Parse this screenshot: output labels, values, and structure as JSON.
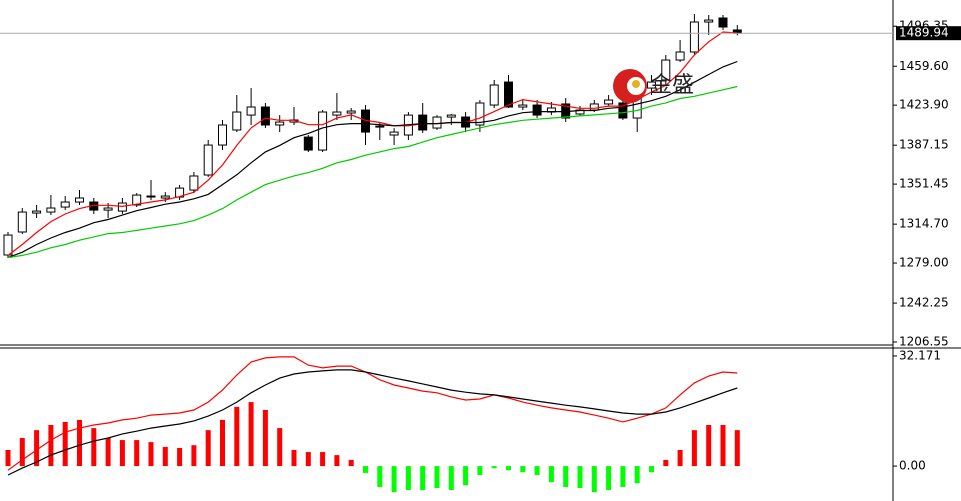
{
  "chart_data": [
    {
      "type": "candlestick",
      "up_color": "#ffffff",
      "down_color": "#000000",
      "open": [
        1286.4,
        1307.5,
        1324.9,
        1325.8,
        1330.4,
        1335.0,
        1335.0,
        1327.6,
        1326.7,
        1332.3,
        1339.6,
        1338.7,
        1339.6,
        1346.0,
        1359.8,
        1387.3,
        1401.1,
        1414.8,
        1422.2,
        1405.7,
        1408.4,
        1394.6,
        1382.7,
        1414.8,
        1416.7,
        1419.4,
        1403.8,
        1396.5,
        1396.5,
        1414.8,
        1402.9,
        1413.0,
        1413.0,
        1405.7,
        1424.0,
        1445.1,
        1422.2,
        1424.0,
        1417.6,
        1425.0,
        1415.8,
        1419.4,
        1425.0,
        1425.9,
        1412.1,
        1439.6,
        1447.0,
        1465.3,
        1472.7,
        1500.2,
        1503.9,
        1492.9
      ],
      "high": [
        1307.5,
        1329.5,
        1332.3,
        1341.4,
        1340.5,
        1346.0,
        1338.7,
        1334.1,
        1338.7,
        1343.2,
        1355.2,
        1344.1,
        1350.6,
        1362.5,
        1391.9,
        1410.3,
        1433.2,
        1439.6,
        1425.9,
        1414.8,
        1422.2,
        1396.5,
        1419.4,
        1435.0,
        1421.3,
        1424.0,
        1408.4,
        1402.9,
        1417.6,
        1425.9,
        1414.8,
        1415.8,
        1417.6,
        1428.6,
        1447.0,
        1451.6,
        1428.6,
        1428.6,
        1426.8,
        1430.4,
        1423.1,
        1428.6,
        1433.2,
        1430.4,
        1448.8,
        1451.6,
        1469.9,
        1483.7,
        1507.5,
        1506.6,
        1506.6,
        1497.4
      ],
      "low": [
        1283.6,
        1305.6,
        1320.3,
        1323.1,
        1327.6,
        1332.3,
        1324.0,
        1320.3,
        1324.0,
        1330.4,
        1336.8,
        1335.0,
        1336.8,
        1343.2,
        1358.0,
        1382.7,
        1399.2,
        1405.7,
        1402.9,
        1399.2,
        1405.7,
        1380.9,
        1380.9,
        1410.3,
        1410.3,
        1387.3,
        1391.9,
        1387.3,
        1391.9,
        1398.3,
        1401.1,
        1405.7,
        1399.2,
        1399.2,
        1421.3,
        1421.3,
        1419.4,
        1412.1,
        1414.8,
        1408.4,
        1413.9,
        1417.6,
        1423.1,
        1410.3,
        1399.2,
        1433.2,
        1442.4,
        1463.5,
        1469.9,
        1488.3,
        1492.9,
        1488.0
      ],
      "close": [
        1304.7,
        1325.8,
        1326.7,
        1329.5,
        1335.0,
        1338.7,
        1327.6,
        1329.5,
        1334.1,
        1341.4,
        1340.5,
        1340.5,
        1347.8,
        1358.9,
        1387.3,
        1405.7,
        1417.6,
        1422.2,
        1405.7,
        1408.4,
        1410.3,
        1382.7,
        1417.6,
        1417.6,
        1418.5,
        1399.2,
        1404.7,
        1399.2,
        1414.8,
        1401.1,
        1413.0,
        1414.8,
        1403.8,
        1425.9,
        1442.4,
        1422.2,
        1424.0,
        1414.8,
        1421.3,
        1412.1,
        1419.4,
        1425.0,
        1428.6,
        1412.1,
        1447.0,
        1445.1,
        1465.3,
        1472.7,
        1500.2,
        1502.0,
        1495.6,
        1489.94
      ],
      "lines": [
        {
          "color": "#ff0000",
          "values": [
            1286,
            1296,
            1307,
            1317,
            1324,
            1329,
            1332,
            1332,
            1331,
            1333,
            1335,
            1337,
            1340,
            1344,
            1355,
            1369,
            1387,
            1403,
            1412,
            1410,
            1410,
            1406,
            1406,
            1412,
            1415,
            1410,
            1408,
            1405,
            1405,
            1407,
            1407,
            1408,
            1408,
            1412,
            1418,
            1424,
            1429,
            1427,
            1425,
            1423,
            1421,
            1421,
            1423,
            1423,
            1429,
            1436,
            1442,
            1454,
            1470,
            1482,
            1491,
            1490
          ]
        },
        {
          "color": "#000000",
          "values": [
            1284,
            1289,
            1296,
            1302,
            1307,
            1311,
            1316,
            1319,
            1323,
            1327,
            1330,
            1333,
            1335,
            1338,
            1342,
            1351,
            1360,
            1371,
            1381,
            1387,
            1394,
            1398,
            1403,
            1406,
            1407,
            1407,
            1406,
            1405,
            1406,
            1407,
            1407,
            1408,
            1408,
            1408,
            1410,
            1414,
            1417,
            1418,
            1418,
            1418,
            1419,
            1419,
            1421,
            1422,
            1425,
            1428,
            1432,
            1438,
            1445,
            1452,
            1459,
            1464
          ]
        },
        {
          "color": "#00cc00",
          "values": [
            1284,
            1286,
            1289,
            1293,
            1296,
            1300,
            1303,
            1306,
            1307,
            1309,
            1311,
            1313,
            1315,
            1318,
            1323,
            1329,
            1337,
            1344,
            1351,
            1355,
            1359,
            1362,
            1366,
            1371,
            1374,
            1378,
            1381,
            1384,
            1386,
            1390,
            1394,
            1397,
            1400,
            1403,
            1406,
            1408,
            1410,
            1411,
            1412,
            1413,
            1414,
            1415,
            1416,
            1417,
            1419,
            1423,
            1426,
            1430,
            1432,
            1435,
            1438,
            1441
          ]
        }
      ],
      "ylim": [
        1203.8,
        1520.4
      ],
      "yticks": [
        1206.55,
        1242.25,
        {
          "value": 1279,
          "label": "1279.00"
        },
        {
          "value": 1314.7,
          "label": "1314.70"
        },
        1351.45,
        1387.15,
        {
          "value": 1423.9,
          "label": "1423.90"
        },
        {
          "value": 1459.6,
          "label": "1459.60"
        },
        1496.35
      ],
      "last_price": 1489.94,
      "watermark": "金盛"
    },
    {
      "type": "macd",
      "positive_color": "#ff0000",
      "negative_color": "#00ff00",
      "histogram": [
        4.7,
        8.2,
        10.5,
        12.0,
        12.9,
        13.5,
        11.1,
        8.2,
        7.6,
        7.6,
        7.0,
        5.6,
        5.3,
        6.1,
        10.5,
        13.5,
        17.3,
        18.7,
        16.4,
        11.1,
        4.7,
        4.1,
        4.1,
        3.2,
        1.8,
        -2.0,
        -6.1,
        -7.6,
        -7.0,
        -7.0,
        -6.4,
        -7.0,
        -5.6,
        -2.6,
        -0.6,
        -1.2,
        -1.8,
        -2.6,
        -4.7,
        -6.1,
        -6.4,
        -7.6,
        -7.0,
        -6.1,
        -5.0,
        -1.8,
        1.8,
        4.7,
        10.5,
        12.0,
        12.0,
        10.5
      ],
      "lines": [
        {
          "color": "#ff0000",
          "values": [
            -1.2,
            1.8,
            4.7,
            7.6,
            9.9,
            11.1,
            12.0,
            12.6,
            13.5,
            14.0,
            14.9,
            15.2,
            15.5,
            16.4,
            18.7,
            22.2,
            26.6,
            30.4,
            31.6,
            31.9,
            31.9,
            29.5,
            28.7,
            29.2,
            29.2,
            27.5,
            25.2,
            23.7,
            22.8,
            21.9,
            21.4,
            20.2,
            19.3,
            19.6,
            20.8,
            19.9,
            18.7,
            17.8,
            17.0,
            16.4,
            15.8,
            14.9,
            14.0,
            12.9,
            14.0,
            15.2,
            17.0,
            20.8,
            24.3,
            26.3,
            27.5,
            27.2
          ]
        },
        {
          "color": "#000000",
          "values": [
            -2.6,
            -0.6,
            1.2,
            3.2,
            4.7,
            6.1,
            7.3,
            8.2,
            9.4,
            10.2,
            11.1,
            11.7,
            12.3,
            13.2,
            14.6,
            16.4,
            18.7,
            21.4,
            23.7,
            25.7,
            26.9,
            27.5,
            27.8,
            28.1,
            28.1,
            27.5,
            26.6,
            25.7,
            24.9,
            24.0,
            23.1,
            22.2,
            21.6,
            21.1,
            20.8,
            20.2,
            19.6,
            19.0,
            18.4,
            17.8,
            17.3,
            16.7,
            16.1,
            15.5,
            15.2,
            15.2,
            15.8,
            17.0,
            18.4,
            19.9,
            21.4,
            22.8
          ]
        }
      ],
      "ylim": [
        -10.2,
        34.5
      ],
      "yticks": [
        32.171,
        {
          "value": 0,
          "label": "0.00"
        }
      ]
    }
  ]
}
